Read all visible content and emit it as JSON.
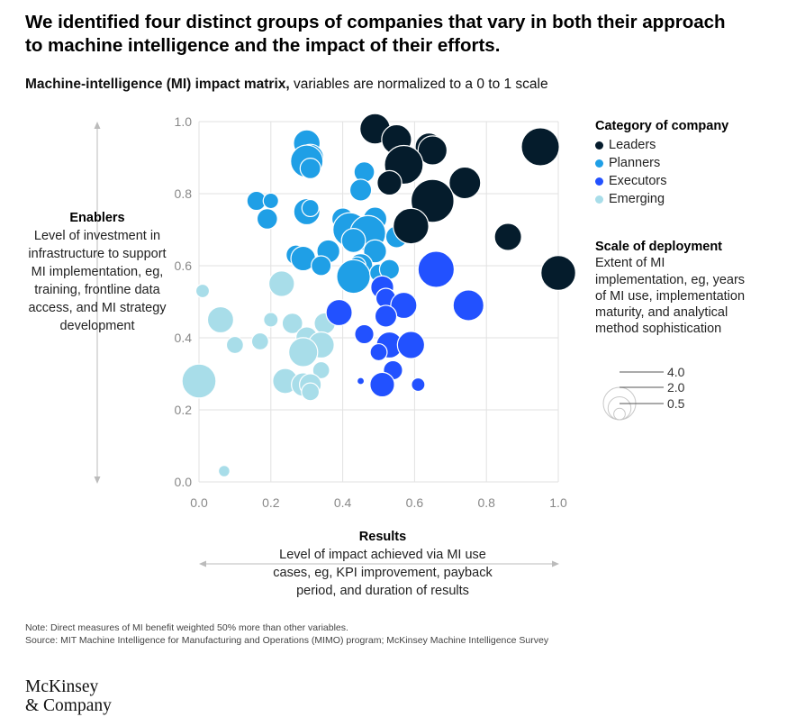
{
  "headline": "We identified four distinct groups of companies that vary in both their approach to machine intelligence and the impact of their efforts.",
  "subtitle": {
    "bold": "Machine-intelligence (MI) impact matrix,",
    "rest": " variables are normalized to a 0 to 1 scale"
  },
  "y_axis": {
    "title": "Enablers",
    "description": "Level of investment in infrastructure to support MI implementation, eg, training, frontline data access, and MI strategy development"
  },
  "x_axis": {
    "title": "Results",
    "description": "Level of impact achieved via MI use cases, eg, KPI improvement, payback period, and duration of results"
  },
  "legend": {
    "title": "Category of company",
    "items": [
      {
        "label": "Leaders",
        "color": "#051c2c"
      },
      {
        "label": "Planners",
        "color": "#1f9fe6"
      },
      {
        "label": "Executors",
        "color": "#2251ff"
      },
      {
        "label": "Emerging",
        "color": "#a8dde9"
      }
    ]
  },
  "scale_legend": {
    "title": "Scale of deployment",
    "description": "Extent of MI implementation, eg, years of MI use, implementation maturity, and analytical method sophistication",
    "values": [
      {
        "label": "4.0",
        "value": 4.0
      },
      {
        "label": "2.0",
        "value": 2.0
      },
      {
        "label": "0.5",
        "value": 0.5
      }
    ]
  },
  "footnotes": {
    "note": "Note: Direct measures of MI benefit weighted 50% more than other variables.",
    "source": "Source: MIT Machine Intelligence for Manufacturing and Operations (MIMO) program; McKinsey Machine Intelligence Survey"
  },
  "logo": {
    "line1": "McKinsey",
    "line2": "& Company"
  },
  "chart_data": {
    "type": "scatter",
    "title": "Machine-intelligence (MI) impact matrix",
    "xlabel": "Results",
    "ylabel": "Enablers",
    "xlim": [
      0,
      1
    ],
    "ylim": [
      0,
      1
    ],
    "xticks": [
      "0.0",
      "0.2",
      "0.4",
      "0.6",
      "0.8",
      "1.0"
    ],
    "yticks": [
      "0.0",
      "0.2",
      "0.4",
      "0.6",
      "0.8",
      "1.0"
    ],
    "grid": true,
    "size_label": "Scale of deployment",
    "series": [
      {
        "name": "Leaders",
        "color": "#051c2c",
        "points": [
          {
            "x": 0.49,
            "y": 0.98,
            "size": 3.5
          },
          {
            "x": 0.55,
            "y": 0.95,
            "size": 3.4
          },
          {
            "x": 0.64,
            "y": 0.93,
            "size": 2.9
          },
          {
            "x": 0.65,
            "y": 0.92,
            "size": 3.2
          },
          {
            "x": 0.95,
            "y": 0.93,
            "size": 5.5
          },
          {
            "x": 0.57,
            "y": 0.88,
            "size": 5.7
          },
          {
            "x": 0.74,
            "y": 0.83,
            "size": 3.8
          },
          {
            "x": 0.53,
            "y": 0.83,
            "size": 2.3
          },
          {
            "x": 0.65,
            "y": 0.78,
            "size": 7.0
          },
          {
            "x": 0.59,
            "y": 0.71,
            "size": 4.8
          },
          {
            "x": 0.86,
            "y": 0.68,
            "size": 2.8
          },
          {
            "x": 1.0,
            "y": 0.58,
            "size": 4.6
          }
        ]
      },
      {
        "name": "Planners",
        "color": "#1f9fe6",
        "points": [
          {
            "x": 0.3,
            "y": 0.94,
            "size": 2.7
          },
          {
            "x": 0.31,
            "y": 0.9,
            "size": 2.7
          },
          {
            "x": 0.3,
            "y": 0.89,
            "size": 4.0
          },
          {
            "x": 0.31,
            "y": 0.87,
            "size": 1.6
          },
          {
            "x": 0.46,
            "y": 0.86,
            "size": 1.6
          },
          {
            "x": 0.45,
            "y": 0.81,
            "size": 1.8
          },
          {
            "x": 0.16,
            "y": 0.78,
            "size": 1.4
          },
          {
            "x": 0.2,
            "y": 0.78,
            "size": 0.9
          },
          {
            "x": 0.19,
            "y": 0.73,
            "size": 1.6
          },
          {
            "x": 0.3,
            "y": 0.75,
            "size": 2.6
          },
          {
            "x": 0.31,
            "y": 0.76,
            "size": 1.1
          },
          {
            "x": 0.4,
            "y": 0.73,
            "size": 1.8
          },
          {
            "x": 0.49,
            "y": 0.73,
            "size": 2.1
          },
          {
            "x": 0.42,
            "y": 0.7,
            "size": 4.4
          },
          {
            "x": 0.47,
            "y": 0.69,
            "size": 4.8
          },
          {
            "x": 0.55,
            "y": 0.68,
            "size": 1.8
          },
          {
            "x": 0.43,
            "y": 0.67,
            "size": 2.2
          },
          {
            "x": 0.49,
            "y": 0.64,
            "size": 2.0
          },
          {
            "x": 0.36,
            "y": 0.64,
            "size": 2.0
          },
          {
            "x": 0.27,
            "y": 0.63,
            "size": 1.5
          },
          {
            "x": 0.29,
            "y": 0.62,
            "size": 2.3
          },
          {
            "x": 0.34,
            "y": 0.6,
            "size": 1.5
          },
          {
            "x": 0.45,
            "y": 0.6,
            "size": 2.2
          },
          {
            "x": 0.44,
            "y": 0.6,
            "size": 1.2
          },
          {
            "x": 0.43,
            "y": 0.57,
            "size": 4.3
          },
          {
            "x": 0.5,
            "y": 0.58,
            "size": 1.2
          },
          {
            "x": 0.53,
            "y": 0.59,
            "size": 1.5
          }
        ]
      },
      {
        "name": "Executors",
        "color": "#2251ff",
        "points": [
          {
            "x": 0.66,
            "y": 0.59,
            "size": 5.0
          },
          {
            "x": 0.51,
            "y": 0.54,
            "size": 2.0
          },
          {
            "x": 0.52,
            "y": 0.51,
            "size": 1.5
          },
          {
            "x": 0.57,
            "y": 0.49,
            "size": 2.6
          },
          {
            "x": 0.75,
            "y": 0.49,
            "size": 3.6
          },
          {
            "x": 0.52,
            "y": 0.46,
            "size": 1.8
          },
          {
            "x": 0.39,
            "y": 0.47,
            "size": 2.6
          },
          {
            "x": 0.46,
            "y": 0.41,
            "size": 1.4
          },
          {
            "x": 0.53,
            "y": 0.38,
            "size": 2.6
          },
          {
            "x": 0.59,
            "y": 0.38,
            "size": 2.8
          },
          {
            "x": 0.5,
            "y": 0.36,
            "size": 1.1
          },
          {
            "x": 0.54,
            "y": 0.31,
            "size": 1.4
          },
          {
            "x": 0.45,
            "y": 0.28,
            "size": 0.2
          },
          {
            "x": 0.51,
            "y": 0.27,
            "size": 2.3
          },
          {
            "x": 0.61,
            "y": 0.27,
            "size": 0.7
          }
        ]
      },
      {
        "name": "Emerging",
        "color": "#a8dde9",
        "points": [
          {
            "x": 0.01,
            "y": 0.53,
            "size": 0.7
          },
          {
            "x": 0.23,
            "y": 0.55,
            "size": 2.5
          },
          {
            "x": 0.06,
            "y": 0.45,
            "size": 2.6
          },
          {
            "x": 0.2,
            "y": 0.45,
            "size": 0.8
          },
          {
            "x": 0.26,
            "y": 0.44,
            "size": 1.6
          },
          {
            "x": 0.35,
            "y": 0.44,
            "size": 1.7
          },
          {
            "x": 0.1,
            "y": 0.38,
            "size": 1.1
          },
          {
            "x": 0.17,
            "y": 0.39,
            "size": 1.1
          },
          {
            "x": 0.3,
            "y": 0.4,
            "size": 1.8
          },
          {
            "x": 0.34,
            "y": 0.38,
            "size": 2.6
          },
          {
            "x": 0.29,
            "y": 0.36,
            "size": 3.2
          },
          {
            "x": 0.34,
            "y": 0.31,
            "size": 1.1
          },
          {
            "x": 0.0,
            "y": 0.28,
            "size": 4.4
          },
          {
            "x": 0.24,
            "y": 0.28,
            "size": 2.4
          },
          {
            "x": 0.29,
            "y": 0.27,
            "size": 2.1
          },
          {
            "x": 0.31,
            "y": 0.27,
            "size": 1.8
          },
          {
            "x": 0.31,
            "y": 0.25,
            "size": 1.2
          },
          {
            "x": 0.07,
            "y": 0.03,
            "size": 0.5
          }
        ]
      }
    ]
  }
}
